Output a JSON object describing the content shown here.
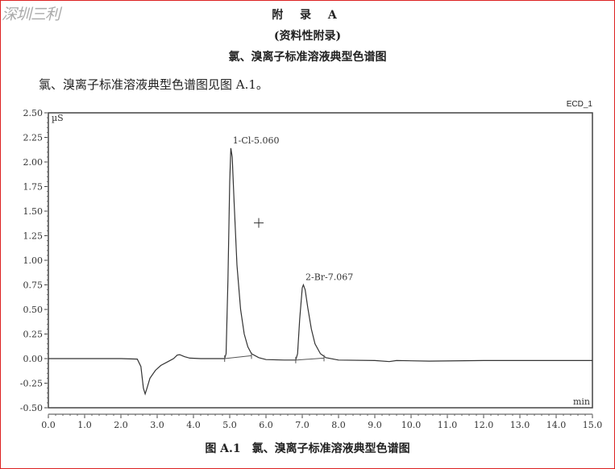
{
  "watermark": "深圳三利",
  "heading": {
    "appendix": "附 录 A",
    "type": "(资料性附录)",
    "title": "氯、溴离子标准溶液典型色谱图"
  },
  "paragraph": "氯、溴离子标准溶液典型色谱图见图 A.1。",
  "caption": "图 A.1　氯、溴离子标准溶液典型色谱图",
  "chart_data": {
    "type": "line",
    "title": "",
    "channel_label": "ECD_1",
    "xlabel": "min",
    "ylabel": "µS",
    "xlim": [
      0,
      15
    ],
    "ylim": [
      -0.5,
      2.5
    ],
    "x_ticks": [
      "0.0",
      "1.0",
      "2.0",
      "3.0",
      "4.0",
      "5.0",
      "6.0",
      "7.0",
      "8.0",
      "9.0",
      "10.0",
      "11.0",
      "12.0",
      "13.0",
      "14.0",
      "15.0"
    ],
    "y_ticks": [
      "2.50",
      "2.25",
      "2.00",
      "1.75",
      "1.50",
      "1.25",
      "1.00",
      "0.75",
      "0.50",
      "0.25",
      "0.00",
      "-0.25",
      "-0.50"
    ],
    "grid": false,
    "peaks": [
      {
        "label": "1-Cl-5.060",
        "time": 5.06,
        "height": 2.14
      },
      {
        "label": "2-Br-7.067",
        "time": 7.067,
        "height": 0.75
      }
    ],
    "series": [
      {
        "points": [
          [
            0,
            0
          ],
          [
            2.0,
            0.0
          ],
          [
            2.45,
            -0.005
          ],
          [
            2.55,
            -0.08
          ],
          [
            2.62,
            -0.3
          ],
          [
            2.67,
            -0.36
          ],
          [
            2.72,
            -0.3
          ],
          [
            2.8,
            -0.2
          ],
          [
            2.95,
            -0.12
          ],
          [
            3.1,
            -0.07
          ],
          [
            3.3,
            -0.03
          ],
          [
            3.45,
            0.0
          ],
          [
            3.55,
            0.035
          ],
          [
            3.62,
            0.04
          ],
          [
            3.75,
            0.02
          ],
          [
            3.9,
            0.005
          ],
          [
            4.2,
            0.0
          ],
          [
            4.86,
            0.0
          ],
          [
            4.9,
            0.05
          ],
          [
            4.95,
            0.8
          ],
          [
            5.0,
            1.8
          ],
          [
            5.03,
            2.14
          ],
          [
            5.07,
            2.05
          ],
          [
            5.12,
            1.6
          ],
          [
            5.2,
            0.95
          ],
          [
            5.3,
            0.5
          ],
          [
            5.4,
            0.25
          ],
          [
            5.5,
            0.12
          ],
          [
            5.6,
            0.05
          ],
          [
            5.8,
            0.01
          ],
          [
            6.0,
            -0.01
          ],
          [
            6.5,
            -0.015
          ],
          [
            6.82,
            -0.015
          ],
          [
            6.87,
            0.05
          ],
          [
            6.93,
            0.4
          ],
          [
            7.0,
            0.72
          ],
          [
            7.03,
            0.75
          ],
          [
            7.08,
            0.7
          ],
          [
            7.15,
            0.52
          ],
          [
            7.25,
            0.3
          ],
          [
            7.35,
            0.15
          ],
          [
            7.5,
            0.05
          ],
          [
            7.65,
            0.01
          ],
          [
            8.0,
            -0.015
          ],
          [
            9.0,
            -0.02
          ],
          [
            9.4,
            -0.03
          ],
          [
            9.6,
            -0.02
          ],
          [
            10.5,
            -0.025
          ],
          [
            12,
            -0.02
          ],
          [
            15,
            -0.02
          ]
        ]
      }
    ],
    "integration_baselines": [
      [
        [
          4.86,
          0.0
        ],
        [
          5.6,
          0.03
        ]
      ],
      [
        [
          6.82,
          -0.015
        ],
        [
          7.6,
          0.005
        ]
      ]
    ],
    "cursor_marker": [
      5.8,
      1.38
    ]
  }
}
